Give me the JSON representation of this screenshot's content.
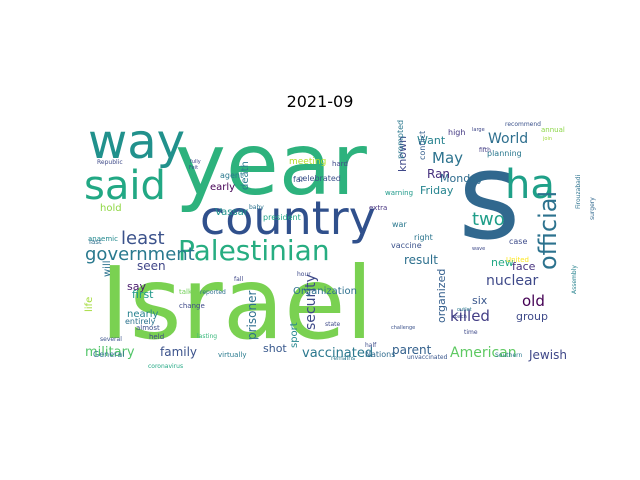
{
  "figure": {
    "title": "2021-09"
  },
  "wordcloud": {
    "palette": "viridis",
    "words": [
      {
        "text": "Israel",
        "color": "#7ad151"
      },
      {
        "text": "year",
        "color": "#2db27d"
      },
      {
        "text": "s",
        "color": "#31688e"
      },
      {
        "text": "country",
        "color": "#30508c"
      },
      {
        "text": "way",
        "color": "#21918c"
      },
      {
        "text": "said",
        "color": "#22a884"
      },
      {
        "text": "ha",
        "color": "#1fa088"
      },
      {
        "text": "Palestinian",
        "color": "#27ad81"
      },
      {
        "text": "official",
        "color": "#2c728e"
      },
      {
        "text": "government",
        "color": "#29798e"
      },
      {
        "text": "least",
        "color": "#3b528b"
      },
      {
        "text": "two",
        "color": "#1f9e89"
      },
      {
        "text": "security",
        "color": "#3e4a89"
      },
      {
        "text": "vaccinated",
        "color": "#2a788e"
      },
      {
        "text": "American",
        "color": "#5ec962"
      },
      {
        "text": "nuclear",
        "color": "#3e4989"
      },
      {
        "text": "killed",
        "color": "#433e85"
      },
      {
        "text": "old",
        "color": "#440154"
      },
      {
        "text": "World",
        "color": "#2e6f8e"
      },
      {
        "text": "May",
        "color": "#2c738e"
      },
      {
        "text": "military",
        "color": "#52c569"
      },
      {
        "text": "family",
        "color": "#3b528b"
      },
      {
        "text": "parent",
        "color": "#34618d"
      },
      {
        "text": "Jewish",
        "color": "#3f4788"
      },
      {
        "text": "result",
        "color": "#2d708e"
      },
      {
        "text": "new",
        "color": "#22a884"
      },
      {
        "text": "face",
        "color": "#46327e"
      },
      {
        "text": "group",
        "color": "#3e4989"
      },
      {
        "text": "six",
        "color": "#39568c"
      },
      {
        "text": "organized",
        "color": "#355f8d"
      },
      {
        "text": "prisoner",
        "color": "#2e6e8e"
      },
      {
        "text": "shot",
        "color": "#38588c"
      },
      {
        "text": "seen",
        "color": "#404688"
      },
      {
        "text": "first",
        "color": "#1f978b"
      },
      {
        "text": "say",
        "color": "#481a6c"
      },
      {
        "text": "Monday",
        "color": "#2f6c8e"
      },
      {
        "text": "Friday",
        "color": "#25848e"
      },
      {
        "text": "Ran",
        "color": "#46307e"
      },
      {
        "text": "known",
        "color": "#3f4889"
      },
      {
        "text": "Want",
        "color": "#26828e"
      },
      {
        "text": "death",
        "color": "#297b8e"
      },
      {
        "text": "Vassar",
        "color": "#20928c"
      },
      {
        "text": "early",
        "color": "#440154"
      },
      {
        "text": "hold",
        "color": "#8fd744"
      },
      {
        "text": "will",
        "color": "#2c728e"
      },
      {
        "text": "life",
        "color": "#a2da37"
      },
      {
        "text": "Organization",
        "color": "#2d708e"
      },
      {
        "text": "sport",
        "color": "#24868e"
      },
      {
        "text": "nearly",
        "color": "#26818e"
      },
      {
        "text": "General",
        "color": "#2d708e"
      },
      {
        "text": "Nations",
        "color": "#2f6b8e"
      },
      {
        "text": "meeting",
        "color": "#b5de2b"
      },
      {
        "text": "celebrated",
        "color": "#3b528b"
      },
      {
        "text": "president",
        "color": "#20a386"
      },
      {
        "text": "planning",
        "color": "#2a788e"
      },
      {
        "text": "high",
        "color": "#443983"
      },
      {
        "text": "vaccine",
        "color": "#3b528b"
      },
      {
        "text": "conflict",
        "color": "#355f8d"
      },
      {
        "text": "prompted",
        "color": "#2a788e"
      },
      {
        "text": "warning",
        "color": "#1f9a8a"
      },
      {
        "text": "right",
        "color": "#2b758e"
      },
      {
        "text": "case",
        "color": "#3e4c8a"
      },
      {
        "text": "annual",
        "color": "#8bd646"
      },
      {
        "text": "agent",
        "color": "#2a788e"
      },
      {
        "text": "hard",
        "color": "#3e4989"
      },
      {
        "text": "far",
        "color": "#3b528b"
      },
      {
        "text": "entirely",
        "color": "#2c728e"
      },
      {
        "text": "anaemic",
        "color": "#23898e"
      },
      {
        "text": "almost",
        "color": "#3c4f8a"
      },
      {
        "text": "last",
        "color": "#2d708e"
      },
      {
        "text": "held",
        "color": "#3f4788"
      },
      {
        "text": "change",
        "color": "#3e4989"
      },
      {
        "text": "talk",
        "color": "#70cf57"
      },
      {
        "text": "reported",
        "color": "#2e6f8e"
      },
      {
        "text": "virtually",
        "color": "#297a8e"
      },
      {
        "text": "state",
        "color": "#3e4a89"
      },
      {
        "text": "hour",
        "color": "#3e4989"
      },
      {
        "text": "baby",
        "color": "#2c728e"
      },
      {
        "text": "fall",
        "color": "#3f4788"
      },
      {
        "text": "half",
        "color": "#3d4d8a"
      },
      {
        "text": "Assembly",
        "color": "#26828e"
      },
      {
        "text": "United",
        "color": "#fde725"
      },
      {
        "text": "Southern",
        "color": "#2a788e"
      },
      {
        "text": "unvaccinated",
        "color": "#39568c"
      },
      {
        "text": "coronavirus",
        "color": "#22a884"
      },
      {
        "text": "remains",
        "color": "#2a788e"
      },
      {
        "text": "several",
        "color": "#3b528b"
      },
      {
        "text": "lasting",
        "color": "#35b779"
      },
      {
        "text": "Republic",
        "color": "#3e4a89"
      },
      {
        "text": "extra",
        "color": "#46337f"
      },
      {
        "text": "war",
        "color": "#2a788e"
      },
      {
        "text": "fifth",
        "color": "#433d84"
      },
      {
        "text": "recommend",
        "color": "#3b528b"
      },
      {
        "text": "Feit",
        "color": "#3e4989"
      },
      {
        "text": "fully",
        "color": "#3f4788"
      },
      {
        "text": "challenge",
        "color": "#3b528b"
      },
      {
        "text": "time",
        "color": "#3e4989"
      },
      {
        "text": "Firouzabadi",
        "color": "#2c728e"
      },
      {
        "text": "surgery",
        "color": "#31688e"
      },
      {
        "text": "join",
        "color": "#a0da39"
      },
      {
        "text": "large",
        "color": "#3f4788"
      },
      {
        "text": "outlet",
        "color": "#2a788e"
      },
      {
        "text": "wave",
        "color": "#3e4989"
      },
      {
        "text": "coach",
        "color": "#3e4989"
      }
    ]
  }
}
